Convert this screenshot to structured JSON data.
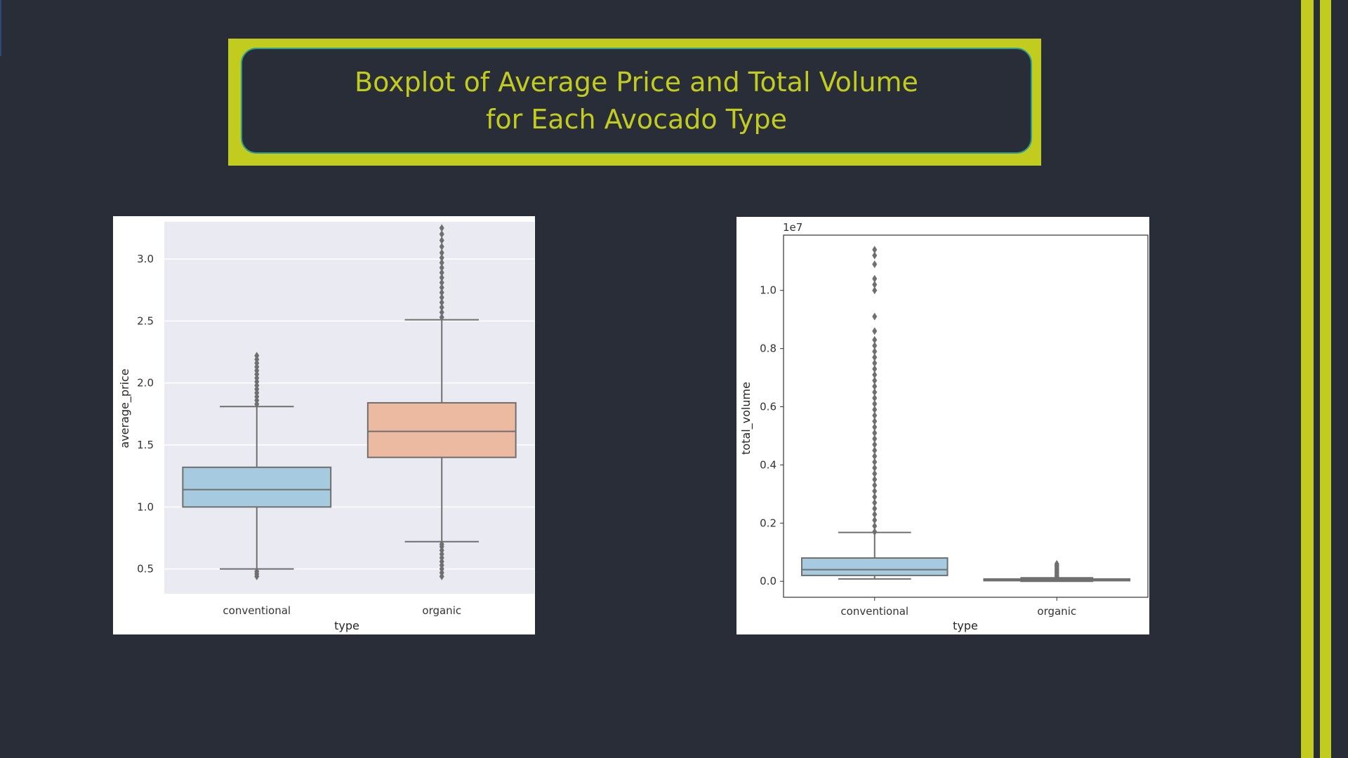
{
  "title": {
    "line1": "Boxplot of Average Price and Total Volume",
    "line2": "for Each Avocado Type"
  },
  "colors": {
    "background": "#282d37",
    "accent": "#c1cc1f",
    "title_border": "#2e9c92",
    "conventional_box": "#a6cbe0",
    "organic_box": "#ecb9a1",
    "whisker": "#6f6f6f",
    "seaborn_panel": "#eaeaf2"
  },
  "chart_data": [
    {
      "type": "boxplot",
      "style": "seaborn-darkgrid",
      "categories": [
        "conventional",
        "organic"
      ],
      "xlabel": "type",
      "ylabel": "average_price",
      "ylim": [
        0.3,
        3.3
      ],
      "yticks": [
        0.5,
        1.0,
        1.5,
        2.0,
        2.5,
        3.0
      ],
      "ytick_labels": [
        "0.5",
        "1.0",
        "1.5",
        "2.0",
        "2.5",
        "3.0"
      ],
      "grid": true,
      "boxes": [
        {
          "category": "conventional",
          "whisker_low": 0.5,
          "q1": 1.0,
          "median": 1.14,
          "q3": 1.32,
          "whisker_high": 1.81,
          "outliers": [
            0.44,
            0.46,
            0.48,
            1.83,
            1.86,
            1.89,
            1.92,
            1.95,
            1.98,
            2.01,
            2.04,
            2.07,
            2.1,
            2.13,
            2.16,
            2.19,
            2.22
          ],
          "color": "#a6cbe0"
        },
        {
          "category": "organic",
          "whisker_low": 0.72,
          "q1": 1.4,
          "median": 1.61,
          "q3": 1.84,
          "whisker_high": 2.51,
          "outliers": [
            0.44,
            0.47,
            0.5,
            0.53,
            0.56,
            0.59,
            0.62,
            0.65,
            0.68,
            0.7,
            2.53,
            2.57,
            2.61,
            2.65,
            2.69,
            2.73,
            2.77,
            2.81,
            2.85,
            2.89,
            2.93,
            2.97,
            3.01,
            3.05,
            3.1,
            3.15,
            3.2,
            3.25
          ],
          "color": "#ecb9a1"
        }
      ]
    },
    {
      "type": "boxplot",
      "style": "matplotlib-default",
      "categories": [
        "conventional",
        "organic"
      ],
      "xlabel": "type",
      "ylabel": "total_volume",
      "offset_label": "1e7",
      "ylim": [
        -0.055,
        1.19
      ],
      "yticks": [
        0.0,
        0.2,
        0.4,
        0.6,
        0.8,
        1.0
      ],
      "ytick_labels": [
        "0.0",
        "0.2",
        "0.4",
        "0.6",
        "0.8",
        "1.0"
      ],
      "grid": false,
      "boxes": [
        {
          "category": "conventional",
          "whisker_low": 0.008,
          "q1": 0.02,
          "median": 0.04,
          "q3": 0.08,
          "whisker_high": 0.168,
          "outliers": [
            0.17,
            0.19,
            0.21,
            0.23,
            0.25,
            0.27,
            0.29,
            0.31,
            0.33,
            0.35,
            0.37,
            0.39,
            0.41,
            0.43,
            0.45,
            0.47,
            0.49,
            0.51,
            0.53,
            0.55,
            0.57,
            0.59,
            0.61,
            0.63,
            0.65,
            0.67,
            0.69,
            0.71,
            0.73,
            0.75,
            0.77,
            0.79,
            0.81,
            0.83,
            0.86,
            0.91,
            1.0,
            1.02,
            1.04,
            1.09,
            1.12,
            1.14
          ],
          "color": "#a6cbe0"
        },
        {
          "category": "organic",
          "whisker_low": 0.0,
          "q1": 0.002,
          "median": 0.004,
          "q3": 0.008,
          "whisker_high": 0.012,
          "outliers": [
            0.015,
            0.02,
            0.025,
            0.03,
            0.035,
            0.04,
            0.045,
            0.05,
            0.055,
            0.06
          ],
          "color": "#a6cbe0"
        }
      ]
    }
  ]
}
